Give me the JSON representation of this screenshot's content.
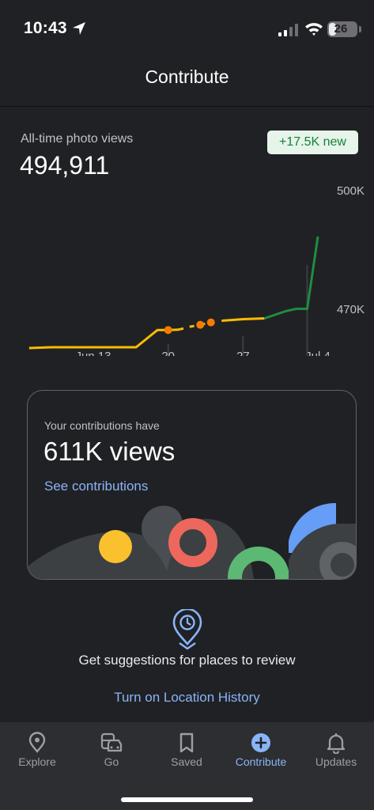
{
  "status": {
    "time": "10:43",
    "battery": "26",
    "battery_level": 0.26
  },
  "header": {
    "title": "Contribute"
  },
  "photo_views": {
    "label": "All-time photo views",
    "total": "494,911",
    "change": "+17.5K new"
  },
  "chart_data": {
    "type": "line",
    "x_ticks": [
      "Jun 13",
      "20",
      "27",
      "Jul 4"
    ],
    "y_ticks": [
      "500K",
      "470K"
    ],
    "ylim": [
      470000,
      500000
    ],
    "series_colors": {
      "earlier": "#fbbc04",
      "recent": "#1e8e3e"
    },
    "points": [
      {
        "x": "Jun 7",
        "y": 470000
      },
      {
        "x": "Jun 9",
        "y": 470200
      },
      {
        "x": "Jun 13",
        "y": 470200
      },
      {
        "x": "Jun 17",
        "y": 470200
      },
      {
        "x": "Jun 19",
        "y": 474500
      },
      {
        "x": "Jun 20",
        "y": 474500
      },
      {
        "x": "Jun 21",
        "y": 474600
      },
      {
        "x": "Jun 22",
        "y": 475300
      },
      {
        "x": "Jun 23",
        "y": 475800
      },
      {
        "x": "Jun 24",
        "y": 476400
      },
      {
        "x": "Jun 25",
        "y": 476800
      },
      {
        "x": "Jun 27",
        "y": 477200
      },
      {
        "x": "Jun 29",
        "y": 477400
      },
      {
        "x": "Jul 1",
        "y": 479200
      },
      {
        "x": "Jul 2",
        "y": 479800
      },
      {
        "x": "Jul 3",
        "y": 479800
      },
      {
        "x": "Jul 4",
        "y": 497800
      }
    ]
  },
  "contributions": {
    "label": "Your contributions have",
    "views": "611K views",
    "link": "See contributions"
  },
  "suggestion": {
    "icon": "location-history-icon",
    "text": "Get suggestions for places to review",
    "link": "Turn on Location History"
  },
  "nav": {
    "items": [
      {
        "label": "Explore",
        "icon": "explore-pin-icon"
      },
      {
        "label": "Go",
        "icon": "commute-icon"
      },
      {
        "label": "Saved",
        "icon": "bookmark-icon"
      },
      {
        "label": "Contribute",
        "icon": "add-circle-icon",
        "active": true
      },
      {
        "label": "Updates",
        "icon": "bell-icon"
      }
    ]
  },
  "colors": {
    "background": "#202124",
    "accent": "#8ab4f8",
    "positive": "#188038"
  }
}
